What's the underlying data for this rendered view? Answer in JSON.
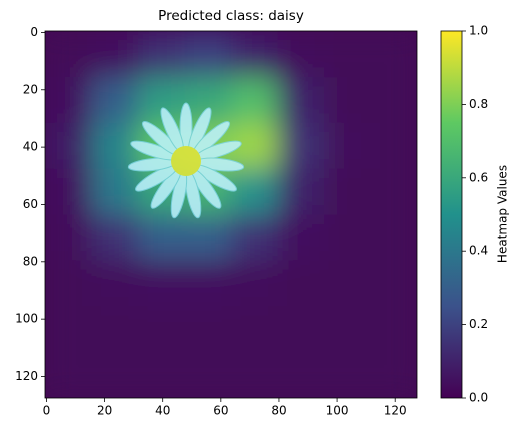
{
  "chart_data": {
    "type": "heatmap",
    "title": "Predicted class: daisy",
    "colorbar_label": "Heatmap Values",
    "cmap": "viridis",
    "xlim": [
      -0.5,
      127.5
    ],
    "ylim": [
      127.5,
      -0.5
    ],
    "xticks": [
      0,
      20,
      40,
      60,
      80,
      100,
      120
    ],
    "yticks": [
      0,
      20,
      40,
      60,
      80,
      100,
      120
    ],
    "clim": [
      0,
      1
    ],
    "cticks": [
      {
        "value": 0,
        "label": "0.0"
      },
      {
        "value": 0.2,
        "label": "0.2"
      },
      {
        "value": 0.4,
        "label": "0.4"
      },
      {
        "value": 0.6,
        "label": "0.6"
      },
      {
        "value": 0.8,
        "label": "0.8"
      },
      {
        "value": 1,
        "label": "1.0"
      }
    ],
    "z": [
      [
        0.02,
        0.05,
        0.15,
        0.2,
        0.1,
        0.03,
        0.02,
        0.02
      ],
      [
        0.05,
        0.3,
        0.55,
        0.6,
        0.7,
        0.1,
        0.02,
        0.02
      ],
      [
        0.08,
        0.45,
        0.75,
        0.8,
        0.85,
        0.15,
        0.03,
        0.02
      ],
      [
        0.05,
        0.4,
        0.6,
        0.65,
        0.5,
        0.1,
        0.02,
        0.02
      ],
      [
        0.03,
        0.15,
        0.3,
        0.3,
        0.15,
        0.05,
        0.02,
        0.02
      ],
      [
        0.02,
        0.03,
        0.05,
        0.05,
        0.03,
        0.02,
        0.02,
        0.02
      ],
      [
        0.02,
        0.02,
        0.02,
        0.02,
        0.02,
        0.02,
        0.02,
        0.02
      ],
      [
        0.02,
        0.02,
        0.02,
        0.02,
        0.02,
        0.02,
        0.02,
        0.02
      ]
    ]
  }
}
